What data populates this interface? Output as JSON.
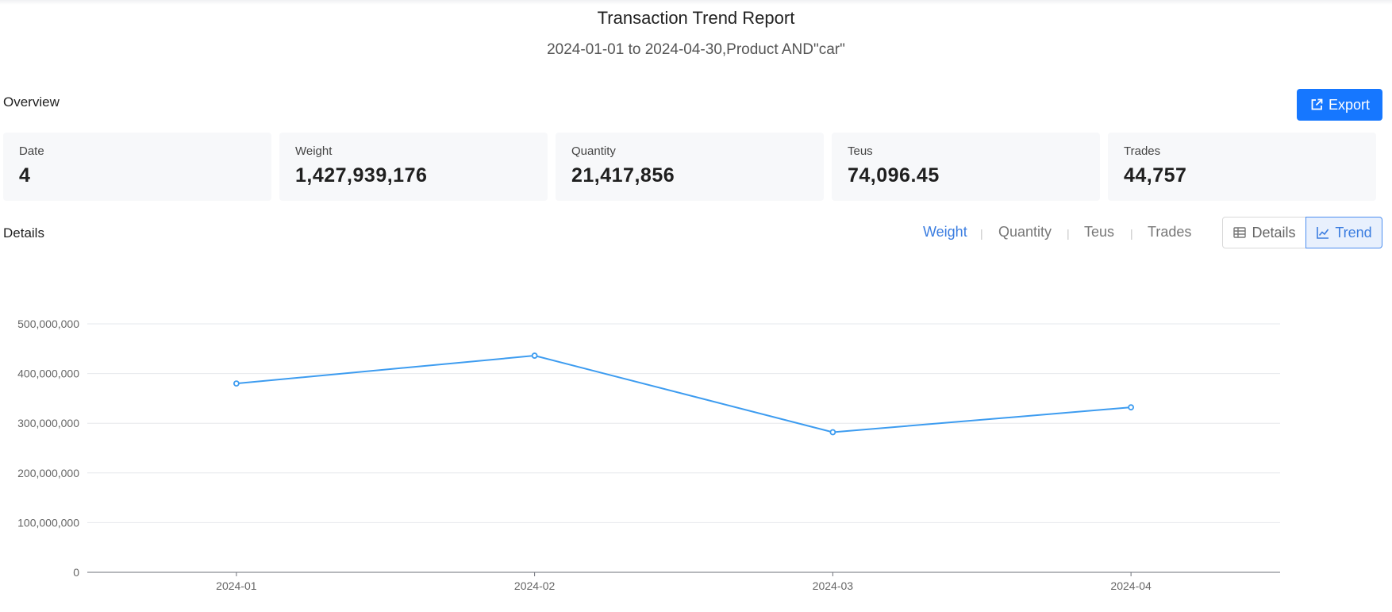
{
  "report": {
    "title": "Transaction Trend Report",
    "subtitle": "2024-01-01 to 2024-04-30,Product AND\"car\""
  },
  "overview": {
    "label": "Overview",
    "export_label": "Export",
    "cards": [
      {
        "label": "Date",
        "value": "4"
      },
      {
        "label": "Weight",
        "value": "1,427,939,176"
      },
      {
        "label": "Quantity",
        "value": "21,417,856"
      },
      {
        "label": "Teus",
        "value": "74,096.45"
      },
      {
        "label": "Trades",
        "value": "44,757"
      }
    ]
  },
  "details": {
    "label": "Details",
    "metric_tabs": [
      "Weight",
      "Quantity",
      "Teus",
      "Trades"
    ],
    "active_metric": "Weight",
    "separator": "|",
    "view_buttons": {
      "details": "Details",
      "trend": "Trend"
    },
    "active_view": "Trend"
  },
  "colors": {
    "accent": "#1677ff",
    "line": "#3d9cf0",
    "active_tab": "#3b7de0"
  },
  "chart_data": {
    "type": "line",
    "categories": [
      "2024-01",
      "2024-02",
      "2024-03",
      "2024-04"
    ],
    "series": [
      {
        "values": [
          380000000,
          436000000,
          282000000,
          332000000
        ]
      }
    ],
    "ylim": [
      0,
      500000000
    ],
    "yticks": [
      "0",
      "100,000,000",
      "200,000,000",
      "300,000,000",
      "400,000,000",
      "500,000,000"
    ],
    "grid": true,
    "title": "",
    "xlabel": "",
    "ylabel": ""
  }
}
